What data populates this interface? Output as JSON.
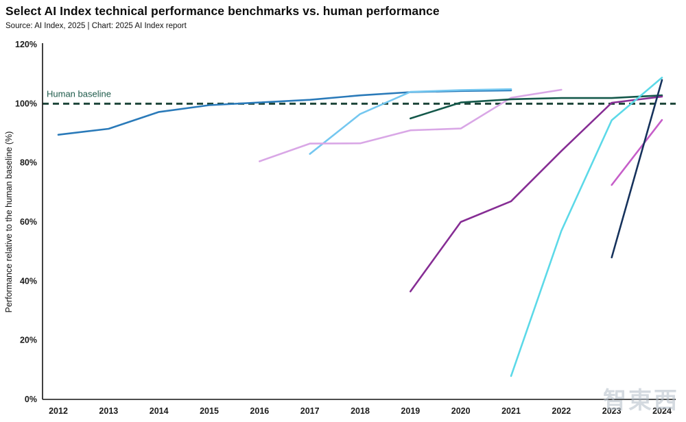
{
  "header": {
    "title": "Select AI Index technical performance benchmarks vs. human performance",
    "subtitle": "Source: AI Index, 2025 | Chart: 2025 AI Index report"
  },
  "watermark": "智東西",
  "chart_data": {
    "type": "line",
    "title": "Select AI Index technical performance benchmarks vs. human performance",
    "source": "Source: AI Index, 2025 | Chart: 2025 AI Index report",
    "xlabel": "",
    "ylabel": "Performance relative to the human baseline (%)",
    "x_ticks": [
      2012,
      2013,
      2014,
      2015,
      2016,
      2017,
      2018,
      2019,
      2020,
      2021,
      2022,
      2023,
      2024
    ],
    "y_ticks": [
      0,
      20,
      40,
      60,
      80,
      100,
      120
    ],
    "ylim": [
      0,
      120
    ],
    "grid": false,
    "legend_position": "none",
    "baseline": {
      "value": 100,
      "label": "Human baseline",
      "color": "#1e463a",
      "style": "dashed"
    },
    "series": [
      {
        "name": "blue",
        "color": "#2a7ab9",
        "points": [
          [
            2012,
            89.5
          ],
          [
            2013,
            91.5
          ],
          [
            2014,
            97.2
          ],
          [
            2015,
            99.5
          ],
          [
            2016,
            100.4
          ],
          [
            2017,
            101.3
          ],
          [
            2018,
            102.8
          ],
          [
            2019,
            103.9
          ],
          [
            2020,
            104.3
          ],
          [
            2021,
            104.5
          ]
        ]
      },
      {
        "name": "sky-blue",
        "color": "#74c7f0",
        "points": [
          [
            2017,
            83
          ],
          [
            2018,
            96.5
          ],
          [
            2019,
            104
          ],
          [
            2020,
            104.6
          ],
          [
            2021,
            104.9
          ]
        ]
      },
      {
        "name": "lavender",
        "color": "#d9a7e6",
        "points": [
          [
            2016,
            80.5
          ],
          [
            2017,
            86.5
          ],
          [
            2018,
            86.6
          ],
          [
            2019,
            91
          ],
          [
            2020,
            91.6
          ],
          [
            2021,
            102
          ],
          [
            2022,
            104.7
          ]
        ]
      },
      {
        "name": "dark-green",
        "color": "#14584a",
        "points": [
          [
            2019,
            95
          ],
          [
            2020,
            100.4
          ],
          [
            2021,
            101.5
          ],
          [
            2022,
            101.9
          ],
          [
            2023,
            101.9
          ],
          [
            2024,
            102.8
          ]
        ]
      },
      {
        "name": "purple",
        "color": "#862d94",
        "points": [
          [
            2019,
            36.5
          ],
          [
            2020,
            60
          ],
          [
            2021,
            67
          ],
          [
            2022,
            84
          ],
          [
            2023,
            100.3
          ],
          [
            2024,
            102.4
          ]
        ]
      },
      {
        "name": "cyan",
        "color": "#5cd9e8",
        "points": [
          [
            2021,
            7.9
          ],
          [
            2022,
            57
          ],
          [
            2023,
            94.4
          ],
          [
            2024,
            108.8
          ]
        ]
      },
      {
        "name": "magenta",
        "color": "#c65ec9",
        "points": [
          [
            2023,
            72.5
          ],
          [
            2024,
            94.5
          ]
        ]
      },
      {
        "name": "navy",
        "color": "#16325c",
        "points": [
          [
            2023,
            48
          ],
          [
            2024,
            108
          ]
        ]
      }
    ]
  }
}
